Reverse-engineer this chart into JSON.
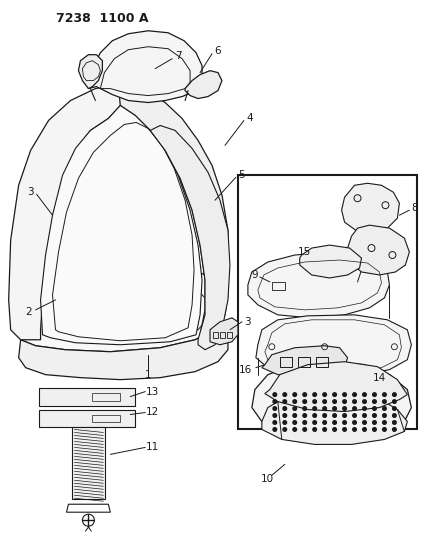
{
  "title": "7238 1100 A",
  "bg_color": "#ffffff",
  "line_color": "#1a1a1a",
  "fig_width": 4.28,
  "fig_height": 5.33,
  "dpi": 100
}
